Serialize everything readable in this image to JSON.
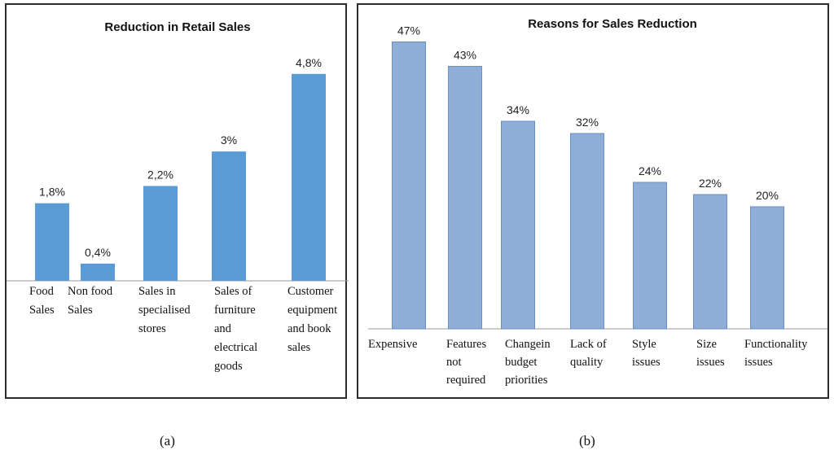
{
  "chart_data": [
    {
      "type": "bar",
      "title": "Reduction in Retail Sales",
      "categories": [
        "Food Sales",
        "Non food Sales",
        "Sales in specialised stores",
        "Sales of furniture and electrical goods",
        "Customer equipment and book sales"
      ],
      "category_lines": [
        [
          "Food",
          "Sales"
        ],
        [
          "Non food",
          "Sales"
        ],
        [
          "Sales in",
          "specialised",
          "stores"
        ],
        [
          "Sales of",
          "furniture",
          "and",
          "electrical",
          "goods"
        ],
        [
          "Customer",
          "equipment",
          "and book",
          "sales"
        ]
      ],
      "values": [
        1.8,
        0.4,
        2.2,
        3.0,
        4.8
      ],
      "data_labels": [
        "1,8%",
        "0,4%",
        "2,2%",
        "3%",
        "4,8%"
      ],
      "xlabel": "",
      "ylabel": "",
      "ylim": [
        0,
        5.4
      ],
      "color": "#5b9bd5",
      "caption": "(a)"
    },
    {
      "type": "bar",
      "title": "Reasons for Sales Reduction",
      "categories": [
        "Expensive",
        "Features not required",
        "Change in budget priorities",
        "Lack of quality",
        "Style issues",
        "Size issues",
        "Functionality issues"
      ],
      "category_lines": [
        [
          "Expensive"
        ],
        [
          "Features",
          "not",
          "required"
        ],
        [
          "Changein",
          "budget",
          "priorities"
        ],
        [
          "Lack of",
          "quality"
        ],
        [
          "Style",
          "issues"
        ],
        [
          "Size",
          "issues"
        ],
        [
          "Functionality",
          "issues"
        ]
      ],
      "values": [
        47,
        43,
        34,
        32,
        24,
        22,
        20
      ],
      "data_labels": [
        "47%",
        "43%",
        "34%",
        "32%",
        "24%",
        "22%",
        "20%"
      ],
      "xlabel": "",
      "ylabel": "",
      "ylim": [
        0,
        50
      ],
      "color": "#8eaed8",
      "caption": "(b)"
    }
  ]
}
